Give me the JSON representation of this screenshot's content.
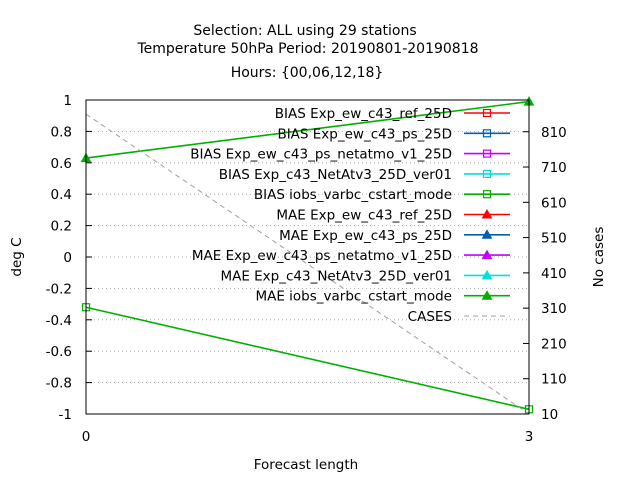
{
  "chart_data": {
    "type": "line",
    "title_lines": [
      "Selection: ALL using    29 stations",
      "Temperature 50hPa   Period: 20190801-20190818",
      "Hours: {00,06,12,18}"
    ],
    "xlabel": "Forecast length",
    "ylabel": "deg C",
    "y2label": "No cases",
    "x_ticks": [
      "0",
      "3"
    ],
    "xlim": [
      0,
      3
    ],
    "ylim": [
      -1,
      1
    ],
    "y2lim": [
      10,
      900
    ],
    "y_ticks": [
      "1",
      "0.8",
      "0.6",
      "0.4",
      "0.2",
      "0",
      "-0.2",
      "-0.4",
      "-0.6",
      "-0.8",
      "-1"
    ],
    "y2_ticks": [
      "810",
      "710",
      "610",
      "510",
      "410",
      "310",
      "210",
      "110",
      "10"
    ],
    "grid": true,
    "legend_position": "top-right",
    "series": [
      {
        "name": "BIAS Exp_ew_c43_ref_25D",
        "color": "#ff0000",
        "marker": "square-open",
        "axis": "y1",
        "x": [],
        "y": []
      },
      {
        "name": "BIAS Exp_ew_c43_ps_25D",
        "color": "#0060ad",
        "marker": "square-open",
        "axis": "y1",
        "x": [],
        "y": []
      },
      {
        "name": "BIAS Exp_ew_c43_ps_netatmo_v1_25D",
        "color": "#c000ff",
        "marker": "square-open",
        "axis": "y1",
        "x": [],
        "y": []
      },
      {
        "name": "BIAS Exp_c43_NetAtv3_25D_ver01",
        "color": "#00e0e0",
        "marker": "square-open",
        "axis": "y1",
        "x": [],
        "y": []
      },
      {
        "name": "BIAS iobs_varbc_cstart_mode",
        "color": "#00b000",
        "marker": "square-open",
        "axis": "y1",
        "x": [
          0,
          3
        ],
        "y": [
          -0.32,
          -0.97
        ]
      },
      {
        "name": "MAE Exp_ew_c43_ref_25D",
        "color": "#ff0000",
        "marker": "triangle-filled",
        "axis": "y1",
        "x": [],
        "y": []
      },
      {
        "name": "MAE Exp_ew_c43_ps_25D",
        "color": "#0060ad",
        "marker": "triangle-filled",
        "axis": "y1",
        "x": [],
        "y": []
      },
      {
        "name": "MAE Exp_ew_c43_ps_netatmo_v1_25D",
        "color": "#c000ff",
        "marker": "triangle-filled",
        "axis": "y1",
        "x": [],
        "y": []
      },
      {
        "name": "MAE Exp_c43_NetAtv3_25D_ver01",
        "color": "#00e0e0",
        "marker": "triangle-filled",
        "axis": "y1",
        "x": [],
        "y": []
      },
      {
        "name": "MAE iobs_varbc_cstart_mode",
        "color": "#00b000",
        "marker": "triangle-filled",
        "axis": "y1",
        "x": [
          0,
          3
        ],
        "y": [
          0.63,
          0.99
        ]
      },
      {
        "name": "CASES",
        "color": "#a0a0a0",
        "marker": "none",
        "dashed": true,
        "axis": "y2",
        "x": [
          0,
          3
        ],
        "y": [
          860,
          10
        ]
      }
    ]
  }
}
